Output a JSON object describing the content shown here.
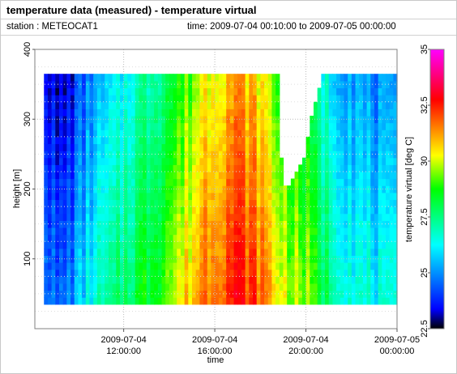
{
  "header": {
    "title": "temperature data (measured) - temperature virtual",
    "station": "station : METEOCAT1",
    "time_range": "time: 2009-07-04 00:10:00 to 2009-07-05 00:00:00"
  },
  "chart_data": {
    "type": "heatmap",
    "xlabel": "time",
    "ylabel": "height [m]",
    "colorbar_label": "temperature virtual [deg C]",
    "x_ticks": [
      {
        "line1": "2009-07-04",
        "line2": "12:00:00",
        "hour": 12
      },
      {
        "line1": "2009-07-04",
        "line2": "16:00:00",
        "hour": 16
      },
      {
        "line1": "2009-07-04",
        "line2": "20:00:00",
        "hour": 20
      },
      {
        "line1": "2009-07-05",
        "line2": "00:00:00",
        "hour": 24
      }
    ],
    "xlim_hours": [
      8.1,
      24
    ],
    "y_ticks": [
      100,
      200,
      300,
      400
    ],
    "ylim": [
      0,
      400
    ],
    "colorbar_ticks": [
      "22.5",
      "25",
      "27.5",
      "30",
      "32.5",
      "35"
    ],
    "colorbar_range": [
      22.5,
      35
    ],
    "grid": true,
    "bins": {
      "hour_start": 8.5,
      "hour_end": 24,
      "hour_step": 0.1667,
      "height_start": 35,
      "height_end": 365,
      "height_step": 10
    },
    "temperature_profile": [
      [
        8.5,
        25.3
      ],
      [
        9.0,
        24.2
      ],
      [
        9.5,
        24.8
      ],
      [
        10.0,
        25.6
      ],
      [
        10.5,
        26.4
      ],
      [
        11.0,
        26.8
      ],
      [
        11.5,
        27.2
      ],
      [
        12.0,
        27.8
      ],
      [
        12.5,
        28.3
      ],
      [
        13.0,
        28.6
      ],
      [
        13.5,
        29.1
      ],
      [
        14.0,
        29.7
      ],
      [
        14.5,
        30.3
      ],
      [
        15.0,
        31.0
      ],
      [
        15.5,
        31.8
      ],
      [
        16.0,
        32.0
      ],
      [
        16.5,
        32.5
      ],
      [
        17.0,
        32.6
      ],
      [
        17.5,
        32.2
      ],
      [
        18.0,
        31.8
      ],
      [
        18.5,
        30.7
      ],
      [
        19.0,
        30.1
      ],
      [
        19.5,
        29.7
      ],
      [
        20.0,
        29.4
      ],
      [
        20.5,
        28.4
      ],
      [
        21.0,
        27.6
      ],
      [
        21.5,
        27.1
      ],
      [
        22.0,
        26.8
      ],
      [
        22.5,
        26.5
      ],
      [
        23.0,
        26.3
      ],
      [
        23.5,
        26.1
      ],
      [
        24.0,
        26.0
      ]
    ],
    "data_top_height": [
      [
        8.5,
        365
      ],
      [
        18.8,
        365
      ],
      [
        18.85,
        200
      ],
      [
        19.5,
        230
      ],
      [
        19.9,
        255
      ],
      [
        20.1,
        300
      ],
      [
        20.35,
        330
      ],
      [
        20.6,
        365
      ],
      [
        24.0,
        365
      ]
    ]
  }
}
